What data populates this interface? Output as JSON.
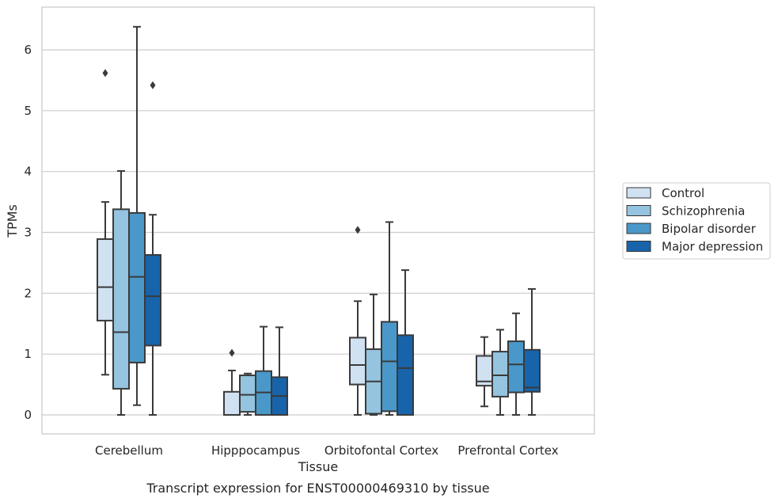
{
  "chart_data": {
    "type": "box",
    "xlabel": "Tissue",
    "ylabel": "TPMs",
    "caption": "Transcript expression for ENST00000469310 by tissue",
    "ylim": [
      -0.3,
      6.7
    ],
    "yticks": [
      0,
      1,
      2,
      3,
      4,
      5,
      6
    ],
    "grid": "horizontal",
    "legend_position": "right",
    "categories": [
      "Cerebellum",
      "Hipppocampus",
      "Orbitofontal Cortex",
      "Prefrontal Cortex"
    ],
    "series": [
      {
        "name": "Control",
        "color": "#d0e1f2",
        "boxes": [
          {
            "whislo": 0.66,
            "q1": 1.55,
            "med": 2.1,
            "q3": 2.89,
            "whishi": 3.5,
            "fliers": [
              5.62
            ]
          },
          {
            "whislo": 0.0,
            "q1": 0.0,
            "med": 0.0,
            "q3": 0.38,
            "whishi": 0.73,
            "fliers": [
              1.02
            ]
          },
          {
            "whislo": 0.0,
            "q1": 0.5,
            "med": 0.82,
            "q3": 1.27,
            "whishi": 1.87,
            "fliers": [
              3.04
            ]
          },
          {
            "whislo": 0.14,
            "q1": 0.48,
            "med": 0.55,
            "q3": 0.97,
            "whishi": 1.28,
            "fliers": []
          }
        ]
      },
      {
        "name": "Schizophrenia",
        "color": "#94c4df",
        "boxes": [
          {
            "whislo": 0.0,
            "q1": 0.43,
            "med": 1.36,
            "q3": 3.38,
            "whishi": 4.01,
            "fliers": []
          },
          {
            "whislo": 0.0,
            "q1": 0.05,
            "med": 0.33,
            "q3": 0.65,
            "whishi": 0.68,
            "fliers": []
          },
          {
            "whislo": 0.0,
            "q1": 0.02,
            "med": 0.55,
            "q3": 1.08,
            "whishi": 1.98,
            "fliers": []
          },
          {
            "whislo": 0.0,
            "q1": 0.3,
            "med": 0.65,
            "q3": 1.04,
            "whishi": 1.4,
            "fliers": []
          }
        ]
      },
      {
        "name": "Bipolar disorder",
        "color": "#4a98c9",
        "boxes": [
          {
            "whislo": 0.16,
            "q1": 0.86,
            "med": 2.27,
            "q3": 3.32,
            "whishi": 6.38,
            "fliers": []
          },
          {
            "whislo": 0.0,
            "q1": 0.0,
            "med": 0.37,
            "q3": 0.72,
            "whishi": 1.45,
            "fliers": []
          },
          {
            "whislo": 0.0,
            "q1": 0.06,
            "med": 0.88,
            "q3": 1.53,
            "whishi": 3.17,
            "fliers": []
          },
          {
            "whislo": 0.0,
            "q1": 0.37,
            "med": 0.83,
            "q3": 1.21,
            "whishi": 1.67,
            "fliers": []
          }
        ]
      },
      {
        "name": "Major depression",
        "color": "#1764ab",
        "boxes": [
          {
            "whislo": 0.0,
            "q1": 1.14,
            "med": 1.95,
            "q3": 2.63,
            "whishi": 3.29,
            "fliers": [
              5.42
            ]
          },
          {
            "whislo": 0.0,
            "q1": 0.0,
            "med": 0.31,
            "q3": 0.62,
            "whishi": 1.44,
            "fliers": []
          },
          {
            "whislo": 0.0,
            "q1": 0.0,
            "med": 0.77,
            "q3": 1.31,
            "whishi": 2.38,
            "fliers": []
          },
          {
            "whislo": 0.0,
            "q1": 0.38,
            "med": 0.45,
            "q3": 1.07,
            "whishi": 2.07,
            "fliers": []
          }
        ]
      }
    ]
  }
}
